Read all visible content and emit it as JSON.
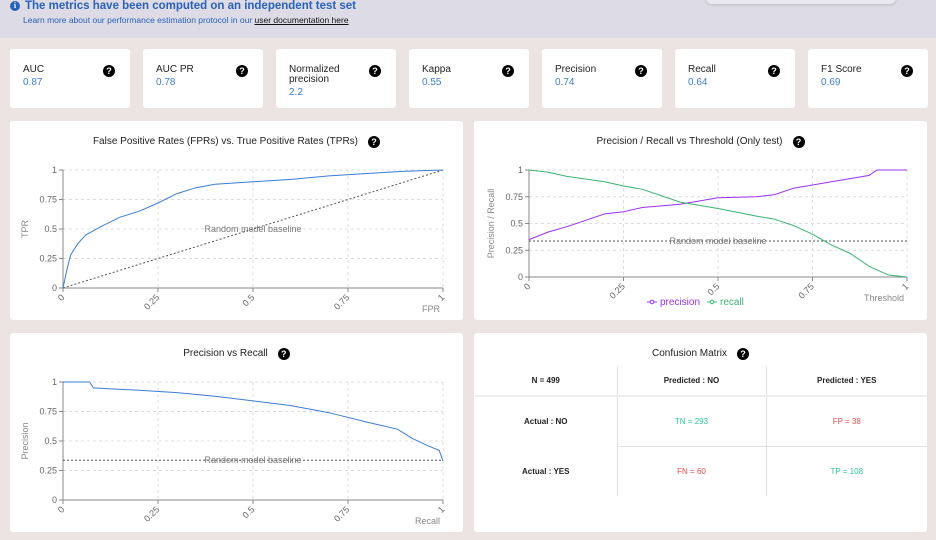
{
  "banner": {
    "title": "The metrics have been computed on an independent test set",
    "subtitle": "Learn more about our performance estimation protocol in our",
    "link": "user documentation here"
  },
  "metrics": [
    {
      "label": "AUC",
      "value": "0.87"
    },
    {
      "label": "AUC PR",
      "value": "0.78"
    },
    {
      "label": "Normalized precision",
      "value": "2.2"
    },
    {
      "label": "Kappa",
      "value": "0.55"
    },
    {
      "label": "Precision",
      "value": "0.74"
    },
    {
      "label": "Recall",
      "value": "0.64"
    },
    {
      "label": "F1 Score",
      "value": "0.69"
    }
  ],
  "help_icon": "question-circle-icon",
  "colors": {
    "roc": "#3b7dd8",
    "precision": "#9b30ff",
    "recall": "#3cb371",
    "good": "#2bc4a0",
    "bad": "#ee4b4b"
  },
  "chart_data": [
    {
      "type": "line",
      "title": "False Positive Rates (FPRs) vs. True Positive Rates (TPRs)",
      "xlabel": "FPR",
      "ylabel": "TPR",
      "xlim": [
        0,
        1
      ],
      "ylim": [
        0,
        1
      ],
      "xticks": [
        "0",
        "0.25",
        "0.5",
        "0.75",
        "1"
      ],
      "yticks": [
        "0",
        "0.25",
        "0.5",
        "0.75",
        "1"
      ],
      "grid": true,
      "series": [
        {
          "x": [
            0,
            0.01,
            0.02,
            0.04,
            0.06,
            0.1,
            0.15,
            0.2,
            0.25,
            0.3,
            0.35,
            0.4,
            0.5,
            0.6,
            0.7,
            0.8,
            0.9,
            1
          ],
          "y": [
            0,
            0.15,
            0.28,
            0.38,
            0.45,
            0.52,
            0.6,
            0.65,
            0.72,
            0.8,
            0.85,
            0.88,
            0.9,
            0.92,
            0.95,
            0.97,
            0.99,
            1
          ]
        }
      ],
      "baseline": {
        "label": "Random model baseline",
        "x": [
          0,
          1
        ],
        "y": [
          0,
          1
        ]
      }
    },
    {
      "type": "line",
      "title": "Precision / Recall vs Threshold (Only test)",
      "xlabel": "Threshold",
      "ylabel": "Precision / Recall",
      "xlim": [
        0,
        1
      ],
      "ylim": [
        0,
        1
      ],
      "xticks": [
        "0",
        "0.25",
        "0.5",
        "0.75",
        "1"
      ],
      "yticks": [
        "0",
        "0.25",
        "0.5",
        "0.75",
        "1"
      ],
      "grid": true,
      "legend": "bottom",
      "series": [
        {
          "name": "precision",
          "x": [
            0,
            0.05,
            0.1,
            0.15,
            0.2,
            0.25,
            0.3,
            0.4,
            0.5,
            0.6,
            0.65,
            0.7,
            0.75,
            0.8,
            0.85,
            0.9,
            0.92,
            1
          ],
          "y": [
            0.35,
            0.42,
            0.47,
            0.53,
            0.59,
            0.61,
            0.65,
            0.68,
            0.74,
            0.75,
            0.77,
            0.83,
            0.86,
            0.89,
            0.92,
            0.95,
            1,
            1
          ]
        },
        {
          "name": "recall",
          "x": [
            0,
            0.05,
            0.1,
            0.2,
            0.25,
            0.3,
            0.4,
            0.5,
            0.6,
            0.65,
            0.7,
            0.75,
            0.8,
            0.85,
            0.9,
            0.95,
            1
          ],
          "y": [
            1,
            0.98,
            0.94,
            0.89,
            0.85,
            0.82,
            0.7,
            0.64,
            0.57,
            0.54,
            0.48,
            0.4,
            0.3,
            0.22,
            0.1,
            0.02,
            0
          ]
        }
      ],
      "baseline": {
        "label": "Random model baseline",
        "x": [
          0,
          1
        ],
        "y": [
          0.337,
          0.337
        ]
      }
    },
    {
      "type": "line",
      "title": "Precision vs Recall",
      "xlabel": "Recall",
      "ylabel": "Precision",
      "xlim": [
        0,
        1
      ],
      "ylim": [
        0,
        1
      ],
      "xticks": [
        "0",
        "0.25",
        "0.5",
        "0.75",
        "1"
      ],
      "yticks": [
        "0",
        "0.25",
        "0.5",
        "0.75",
        "1"
      ],
      "grid": true,
      "series": [
        {
          "x": [
            0,
            0.07,
            0.08,
            0.2,
            0.3,
            0.4,
            0.5,
            0.6,
            0.7,
            0.8,
            0.88,
            0.92,
            0.96,
            0.99,
            1
          ],
          "y": [
            1,
            1,
            0.95,
            0.93,
            0.91,
            0.88,
            0.84,
            0.8,
            0.74,
            0.66,
            0.6,
            0.52,
            0.46,
            0.42,
            0.33
          ]
        }
      ],
      "baseline": {
        "label": "Random model baseline",
        "x": [
          0,
          1
        ],
        "y": [
          0.337,
          0.337
        ]
      }
    }
  ],
  "confusion": {
    "title": "Confusion Matrix",
    "n": "N = 499",
    "pred_no": "Predicted : NO",
    "pred_yes": "Predicted : YES",
    "act_no": "Actual : NO",
    "act_yes": "Actual : YES",
    "tn": "TN = 293",
    "fp": "FP = 38",
    "fn": "FN = 60",
    "tp": "TP = 108"
  }
}
